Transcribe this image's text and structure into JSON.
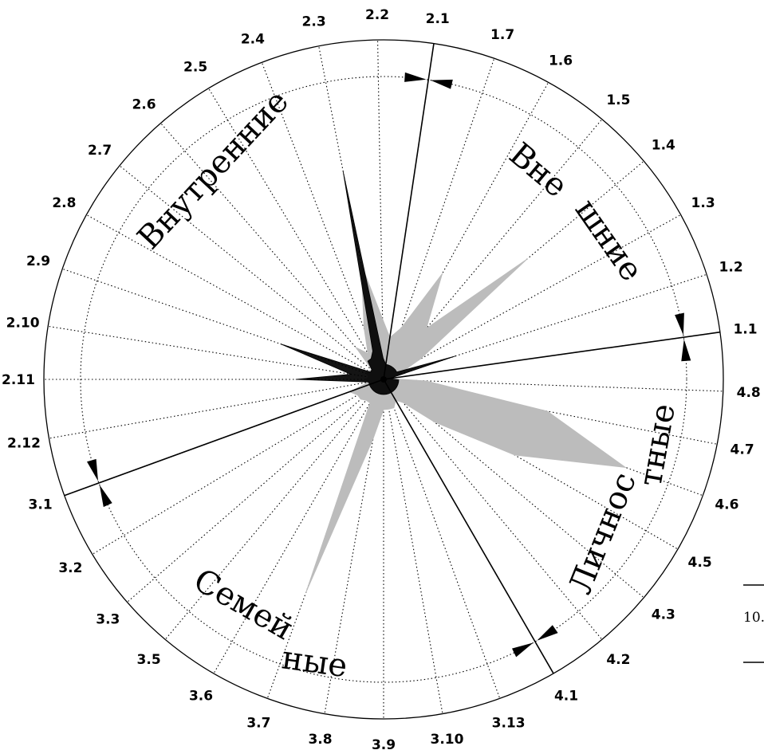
{
  "chart_data": {
    "type": "radar",
    "sectors": [
      {
        "name": "Вне",
        "name2": "шние"
      },
      {
        "name": "Внутренние"
      },
      {
        "name": "Семей",
        "name2": "ные"
      },
      {
        "name": "Личнос",
        "name2": "тные"
      }
    ],
    "spokes": [
      {
        "label": "1.1",
        "angle": 8
      },
      {
        "label": "1.2",
        "angle": 18
      },
      {
        "label": "1.3",
        "angle": 29
      },
      {
        "label": "1.4",
        "angle": 40
      },
      {
        "label": "1.5",
        "angle": 50
      },
      {
        "label": "1.6",
        "angle": 61
      },
      {
        "label": "1.7",
        "angle": 71
      },
      {
        "label": "2.1",
        "angle": 81.5
      },
      {
        "label": "2.2",
        "angle": 91
      },
      {
        "label": "2.3",
        "angle": 101
      },
      {
        "label": "2.4",
        "angle": 111
      },
      {
        "label": "2.5",
        "angle": 121
      },
      {
        "label": "2.6",
        "angle": 131
      },
      {
        "label": "2.7",
        "angle": 141
      },
      {
        "label": "2.8",
        "angle": 151
      },
      {
        "label": "2.9",
        "angle": 161
      },
      {
        "label": "2.10",
        "angle": 171
      },
      {
        "label": "2.11",
        "angle": 180
      },
      {
        "label": "2.12",
        "angle": 190
      },
      {
        "label": "3.1",
        "angle": 200
      },
      {
        "label": "3.2",
        "angle": 211
      },
      {
        "label": "3.3",
        "angle": 221
      },
      {
        "label": "3.5",
        "angle": 230
      },
      {
        "label": "3.6",
        "angle": 240
      },
      {
        "label": "3.7",
        "angle": 250
      },
      {
        "label": "3.8",
        "angle": 260
      },
      {
        "label": "3.9",
        "angle": 270
      },
      {
        "label": "3.10",
        "angle": 280
      },
      {
        "label": "3.13",
        "angle": 290
      },
      {
        "label": "4.1",
        "angle": 300
      },
      {
        "label": "4.2",
        "angle": 310
      },
      {
        "label": "4.3",
        "angle": 320
      },
      {
        "label": "4.5",
        "angle": 330
      },
      {
        "label": "4.6",
        "angle": 340
      },
      {
        "label": "4.7",
        "angle": 349
      },
      {
        "label": "4.8",
        "angle": 358
      }
    ],
    "dividers": [
      8,
      81.5,
      200,
      300
    ],
    "series": [
      {
        "color": "#bcbcbc",
        "values": [
          0,
          0.05,
          0.14,
          0.62,
          0.22,
          0.4,
          0.18,
          0.14,
          0.2,
          0.39,
          0.18,
          0.1,
          0.14,
          0.05,
          0.06,
          0.06,
          0.05,
          0.06,
          0.05,
          0.12,
          0.1,
          0.1,
          0.09,
          0.09,
          0.75,
          0.2,
          0.1,
          0.1,
          0.1,
          0.08,
          0.1,
          0.22,
          0.5,
          0.85,
          0.55,
          0.14
        ]
      },
      {
        "color": "#000000",
        "values": [
          0,
          0.25,
          0.05,
          0.05,
          0.05,
          0.05,
          0.05,
          0.05,
          0.07,
          0.7,
          0.1,
          0.08,
          0.08,
          0.05,
          0.05,
          0.36,
          0.11,
          0.29,
          0.05,
          0.05,
          0.05,
          0.05,
          0.05,
          0.05,
          0.05,
          0.05,
          0.05,
          0.05,
          0.05,
          0.05,
          0.05,
          0.05,
          0.05,
          0.05,
          0.05,
          0.05
        ]
      }
    ],
    "rlim": [
      0,
      1
    ]
  },
  "margin": {
    "text": "10."
  }
}
